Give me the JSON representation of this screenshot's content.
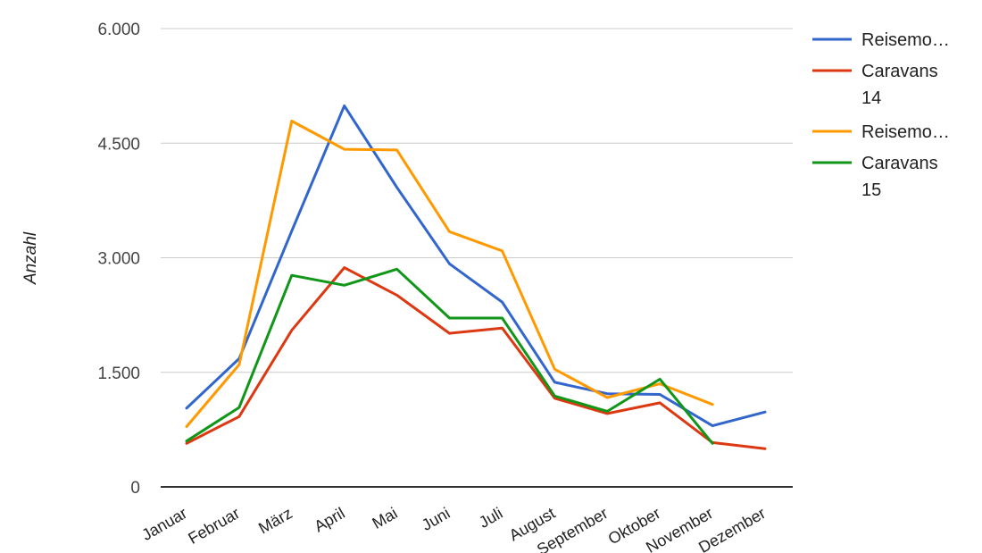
{
  "chart_data": {
    "type": "line",
    "title": "",
    "xlabel": "",
    "ylabel": "Anzahl",
    "ylim": [
      0,
      6000
    ],
    "y_ticks": [
      "0",
      "1.500",
      "3.000",
      "4.500",
      "6.000"
    ],
    "y_tick_values": [
      0,
      1500,
      3000,
      4500,
      6000
    ],
    "grid": true,
    "legend_position": "right",
    "categories": [
      "Januar",
      "Februar",
      "März",
      "April",
      "Mai",
      "Juni",
      "Juli",
      "August",
      "September",
      "Oktober",
      "November",
      "Dezember"
    ],
    "series": [
      {
        "name": "Reisemo…",
        "color": "#3366cc",
        "values": [
          1030,
          1680,
          3350,
          4990,
          3920,
          2920,
          2420,
          1370,
          1220,
          1210,
          800,
          980
        ]
      },
      {
        "name": "Caravans 14",
        "legend_lines": [
          "Caravans",
          "14"
        ],
        "color": "#dc3912",
        "values": [
          570,
          920,
          2050,
          2870,
          2510,
          2010,
          2080,
          1160,
          960,
          1100,
          580,
          500
        ]
      },
      {
        "name": "Reisemo…",
        "color": "#ff9900",
        "values": [
          790,
          1600,
          4790,
          4420,
          4410,
          3340,
          3090,
          1540,
          1170,
          1350,
          1080,
          null
        ]
      },
      {
        "name": "Caravans 15",
        "legend_lines": [
          "Caravans",
          "15"
        ],
        "color": "#109618",
        "values": [
          600,
          1040,
          2770,
          2640,
          2850,
          2210,
          2210,
          1190,
          990,
          1410,
          570,
          null
        ]
      }
    ]
  }
}
